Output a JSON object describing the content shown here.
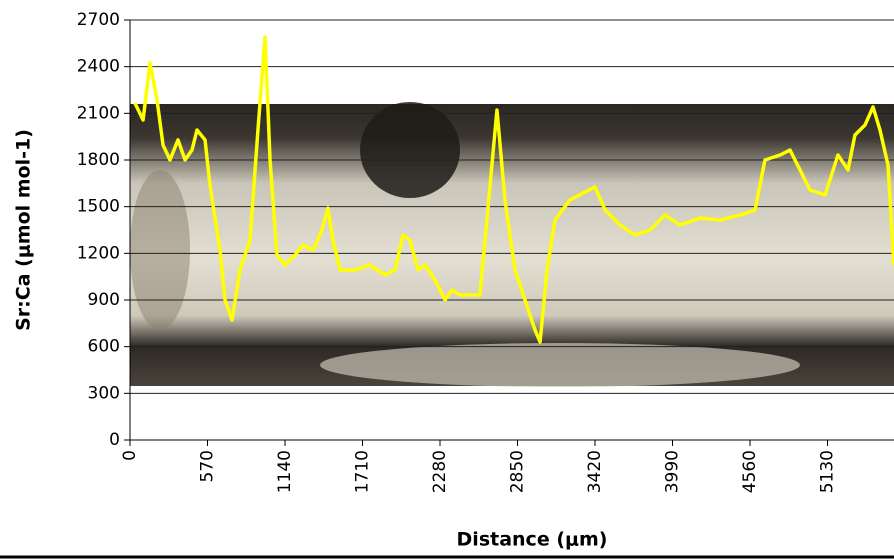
{
  "chart_data": {
    "type": "line",
    "x_label": "Distance (μm)",
    "y_label": "Sr:Ca (μmol mol-1)",
    "xlim": [
      0,
      5700
    ],
    "xticks": [
      0,
      570,
      1140,
      1710,
      2280,
      2850,
      3420,
      3990,
      4560,
      5130,
      5700
    ],
    "ylim": [
      0,
      2700
    ],
    "yticks": [
      0,
      300,
      600,
      900,
      1200,
      1500,
      1800,
      2100,
      2400,
      2700
    ],
    "grid": true,
    "series": [
      {
        "color": "#ffff00",
        "x": [
          37,
          96,
          147,
          199,
          243,
          294,
          353,
          405,
          456,
          493,
          552,
          588,
          662,
          699,
          750,
          809,
          883,
          941,
          993,
          1030,
          1081,
          1140,
          1214,
          1272,
          1346,
          1412,
          1456,
          1493,
          1545,
          1655,
          1765,
          1876,
          1949,
          2008,
          2059,
          2118,
          2170,
          2243,
          2317,
          2368,
          2427,
          2574,
          2699,
          2758,
          2832,
          2905,
          2979,
          3016,
          3067,
          3126,
          3236,
          3346,
          3420,
          3494,
          3604,
          3714,
          3825,
          3935,
          4045,
          4192,
          4339,
          4486,
          4597,
          4670,
          4781,
          4854,
          4928,
          5001,
          5112,
          5207,
          5281,
          5332,
          5406,
          5465,
          5516,
          5575,
          5619
        ],
        "values": [
          2165,
          2057,
          2424,
          2185,
          1896,
          1800,
          1929,
          1800,
          1864,
          1993,
          1929,
          1639,
          1221,
          900,
          771,
          1093,
          1286,
          1993,
          2591,
          1800,
          1189,
          1125,
          1189,
          1254,
          1221,
          1350,
          1491,
          1286,
          1093,
          1093,
          1125,
          1061,
          1093,
          1318,
          1286,
          1093,
          1125,
          1029,
          900,
          964,
          932,
          932,
          2121,
          1543,
          1093,
          900,
          707,
          630,
          1093,
          1414,
          1543,
          1594,
          1627,
          1479,
          1382,
          1318,
          1350,
          1446,
          1382,
          1427,
          1414,
          1446,
          1479,
          1800,
          1832,
          1864,
          1736,
          1607,
          1575,
          1832,
          1736,
          1961,
          2025,
          2141,
          1993,
          1768,
          1125
        ]
      }
    ]
  }
}
